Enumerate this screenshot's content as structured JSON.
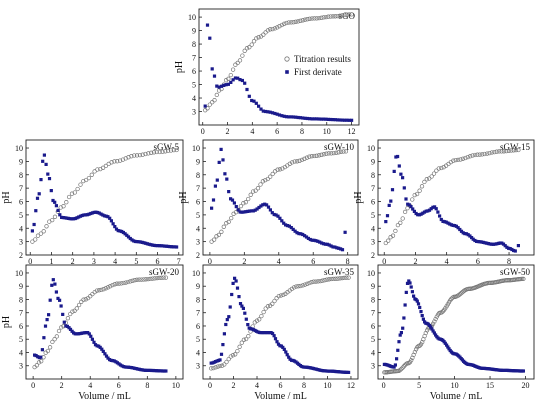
{
  "colors": {
    "derivative": "#1a1a8c",
    "titration": "#777777",
    "axis": "#222222",
    "background": "#ffffff"
  },
  "legend": {
    "titration": "Titration results",
    "derivative": "First derivate"
  },
  "chart_data": [
    {
      "type": "scatter",
      "title": "sGO",
      "xlabel": "",
      "ylabel": "pH",
      "xlim": [
        -0.3,
        12.6
      ],
      "ylim": [
        2,
        10.6
      ],
      "xticks": [
        0,
        2,
        4,
        6,
        8,
        10,
        12
      ],
      "yticks": [
        3,
        4,
        5,
        6,
        7,
        8,
        9,
        10
      ],
      "legend_position": "center-right",
      "grid": false,
      "titration": {
        "x_start": 0.2,
        "x_end": 12.0,
        "points": 64,
        "knots": [
          [
            0.2,
            3.1
          ],
          [
            0.8,
            3.7
          ],
          [
            1.4,
            4.6
          ],
          [
            2.0,
            5.4
          ],
          [
            2.8,
            6.6
          ],
          [
            3.6,
            7.7
          ],
          [
            4.5,
            8.5
          ],
          [
            5.5,
            9.1
          ],
          [
            7.0,
            9.6
          ],
          [
            9.0,
            9.9
          ],
          [
            10.5,
            10.05
          ],
          [
            12.0,
            10.2
          ]
        ]
      },
      "derivative": {
        "x_start": 0.2,
        "x_end": 12.0,
        "points": 64,
        "tail": [],
        "knots": [
          [
            0.2,
            3.4
          ],
          [
            0.35,
            9.5
          ],
          [
            0.55,
            8.5
          ],
          [
            0.8,
            6.0
          ],
          [
            1.2,
            4.8
          ],
          [
            2.0,
            5.0
          ],
          [
            2.7,
            5.5
          ],
          [
            3.2,
            5.3
          ],
          [
            4.0,
            3.8
          ],
          [
            5.0,
            3.0
          ],
          [
            7.0,
            2.6
          ],
          [
            9.0,
            2.45
          ],
          [
            12.0,
            2.35
          ]
        ]
      }
    },
    {
      "type": "scatter",
      "title": "sGW-5",
      "xlabel": "",
      "ylabel": "pH",
      "xlim": [
        -0.2,
        7.2
      ],
      "ylim": [
        2,
        10.6
      ],
      "xticks": [
        0,
        1,
        2,
        3,
        4,
        5,
        6,
        7
      ],
      "yticks": [
        2,
        3,
        4,
        5,
        6,
        7,
        8,
        9,
        10
      ],
      "grid": false,
      "titration": {
        "x_start": 0.1,
        "x_end": 6.9,
        "points": 52,
        "knots": [
          [
            0.1,
            3.0
          ],
          [
            0.5,
            3.6
          ],
          [
            1.0,
            4.6
          ],
          [
            1.5,
            5.6
          ],
          [
            2.0,
            6.6
          ],
          [
            2.6,
            7.6
          ],
          [
            3.2,
            8.4
          ],
          [
            4.0,
            9.0
          ],
          [
            5.0,
            9.45
          ],
          [
            6.0,
            9.7
          ],
          [
            6.9,
            9.85
          ]
        ]
      },
      "derivative": {
        "x_start": 0.1,
        "x_end": 6.9,
        "points": 85,
        "tail": [],
        "knots": [
          [
            0.1,
            3.8
          ],
          [
            0.4,
            6.5
          ],
          [
            0.65,
            9.5
          ],
          [
            0.85,
            8.0
          ],
          [
            1.1,
            6.0
          ],
          [
            1.5,
            4.8
          ],
          [
            2.0,
            4.7
          ],
          [
            2.6,
            5.0
          ],
          [
            3.1,
            5.2
          ],
          [
            3.6,
            4.9
          ],
          [
            4.2,
            3.8
          ],
          [
            5.0,
            3.0
          ],
          [
            6.0,
            2.7
          ],
          [
            6.9,
            2.6
          ]
        ]
      }
    },
    {
      "type": "scatter",
      "title": "sGW-10",
      "xlabel": "",
      "ylabel": "pH",
      "xlim": [
        -0.4,
        8.6
      ],
      "ylim": [
        2,
        10.6
      ],
      "xticks": [
        0,
        2,
        4,
        6,
        8
      ],
      "yticks": [
        2,
        3,
        4,
        5,
        6,
        7,
        8,
        9,
        10
      ],
      "grid": false,
      "titration": {
        "x_start": 0.1,
        "x_end": 7.9,
        "points": 56,
        "knots": [
          [
            0.1,
            3.0
          ],
          [
            0.5,
            3.5
          ],
          [
            1.0,
            4.4
          ],
          [
            1.5,
            5.2
          ],
          [
            2.0,
            5.9
          ],
          [
            2.6,
            6.8
          ],
          [
            3.2,
            7.6
          ],
          [
            4.0,
            8.4
          ],
          [
            5.0,
            9.0
          ],
          [
            6.0,
            9.4
          ],
          [
            7.0,
            9.6
          ],
          [
            7.9,
            9.75
          ]
        ]
      },
      "derivative": {
        "x_start": 0.1,
        "x_end": 7.7,
        "points": 70,
        "tail": [
          [
            7.85,
            3.7
          ]
        ],
        "knots": [
          [
            0.1,
            5.5
          ],
          [
            0.4,
            7.5
          ],
          [
            0.65,
            9.9
          ],
          [
            0.9,
            8.0
          ],
          [
            1.2,
            6.2
          ],
          [
            1.8,
            5.2
          ],
          [
            2.5,
            5.3
          ],
          [
            3.2,
            5.8
          ],
          [
            3.8,
            5.0
          ],
          [
            4.5,
            4.2
          ],
          [
            5.2,
            3.6
          ],
          [
            6.0,
            3.1
          ],
          [
            6.8,
            2.8
          ],
          [
            7.2,
            2.6
          ],
          [
            7.5,
            2.5
          ],
          [
            7.7,
            2.4
          ]
        ]
      }
    },
    {
      "type": "scatter",
      "title": "sGW-15",
      "xlabel": "",
      "ylabel": "pH",
      "xlim": [
        -0.4,
        9.6
      ],
      "ylim": [
        2,
        10.6
      ],
      "xticks": [
        0,
        2,
        4,
        6,
        8
      ],
      "yticks": [
        2,
        3,
        4,
        5,
        6,
        7,
        8,
        9,
        10
      ],
      "grid": false,
      "titration": {
        "x_start": 0.1,
        "x_end": 8.6,
        "points": 56,
        "knots": [
          [
            0.1,
            2.9
          ],
          [
            0.5,
            3.4
          ],
          [
            1.0,
            4.4
          ],
          [
            1.5,
            5.5
          ],
          [
            2.0,
            6.5
          ],
          [
            2.8,
            7.7
          ],
          [
            3.6,
            8.5
          ],
          [
            4.6,
            9.1
          ],
          [
            6.0,
            9.5
          ],
          [
            7.5,
            9.75
          ],
          [
            8.6,
            9.85
          ]
        ]
      },
      "derivative": {
        "x_start": 0.1,
        "x_end": 8.4,
        "points": 78,
        "tail": [
          [
            8.6,
            2.7
          ]
        ],
        "knots": [
          [
            0.1,
            4.5
          ],
          [
            0.4,
            6.0
          ],
          [
            0.8,
            9.5
          ],
          [
            1.1,
            8.0
          ],
          [
            1.5,
            5.8
          ],
          [
            2.2,
            5.0
          ],
          [
            2.8,
            5.3
          ],
          [
            3.2,
            5.6
          ],
          [
            3.8,
            4.5
          ],
          [
            4.5,
            4.2
          ],
          [
            5.2,
            3.6
          ],
          [
            6.0,
            3.0
          ],
          [
            7.0,
            2.8
          ],
          [
            7.5,
            2.9
          ],
          [
            8.0,
            2.5
          ],
          [
            8.4,
            2.3
          ]
        ]
      }
    },
    {
      "type": "scatter",
      "title": "sGW-20",
      "xlabel": "Volume / mL",
      "ylabel": "pH",
      "xlim": [
        -0.5,
        10.5
      ],
      "ylim": [
        2,
        10.6
      ],
      "xticks": [
        0,
        2,
        4,
        6,
        8,
        10
      ],
      "yticks": [
        3,
        4,
        5,
        6,
        7,
        8,
        9,
        10
      ],
      "grid": false,
      "titration": {
        "x_start": 0.1,
        "x_end": 9.3,
        "points": 60,
        "knots": [
          [
            0.1,
            2.9
          ],
          [
            0.5,
            3.3
          ],
          [
            1.0,
            4.1
          ],
          [
            1.5,
            5.0
          ],
          [
            2.0,
            5.9
          ],
          [
            2.8,
            7.1
          ],
          [
            3.6,
            8.0
          ],
          [
            4.6,
            8.7
          ],
          [
            6.0,
            9.2
          ],
          [
            7.5,
            9.5
          ],
          [
            9.3,
            9.65
          ]
        ]
      },
      "derivative": {
        "x_start": 0.1,
        "x_end": 9.3,
        "points": 85,
        "tail": [],
        "knots": [
          [
            0.1,
            3.8
          ],
          [
            0.5,
            3.6
          ],
          [
            1.0,
            6.5
          ],
          [
            1.4,
            9.5
          ],
          [
            1.8,
            8.0
          ],
          [
            2.3,
            6.0
          ],
          [
            3.0,
            5.4
          ],
          [
            3.8,
            5.5
          ],
          [
            4.5,
            4.5
          ],
          [
            5.5,
            3.4
          ],
          [
            6.5,
            2.9
          ],
          [
            8.0,
            2.65
          ],
          [
            9.3,
            2.6
          ]
        ]
      }
    },
    {
      "type": "scatter",
      "title": "sGW-35",
      "xlabel": "Volume / mL",
      "ylabel": "",
      "xlim": [
        -0.6,
        12.6
      ],
      "ylim": [
        2,
        10.6
      ],
      "xticks": [
        0,
        2,
        4,
        6,
        8,
        10,
        12
      ],
      "yticks": [
        3,
        4,
        5,
        6,
        7,
        8,
        9,
        10
      ],
      "grid": false,
      "titration": {
        "x_start": 0.1,
        "x_end": 11.8,
        "points": 64,
        "knots": [
          [
            0.1,
            2.8
          ],
          [
            1.0,
            3.0
          ],
          [
            2.0,
            3.8
          ],
          [
            3.0,
            5.0
          ],
          [
            4.0,
            6.4
          ],
          [
            5.0,
            7.5
          ],
          [
            6.0,
            8.3
          ],
          [
            7.5,
            9.0
          ],
          [
            9.0,
            9.35
          ],
          [
            10.5,
            9.55
          ],
          [
            11.8,
            9.65
          ]
        ]
      },
      "derivative": {
        "x_start": 0.1,
        "x_end": 11.8,
        "points": 95,
        "tail": [],
        "knots": [
          [
            0.1,
            3.2
          ],
          [
            0.8,
            3.4
          ],
          [
            1.5,
            6.5
          ],
          [
            2.1,
            9.6
          ],
          [
            2.7,
            7.5
          ],
          [
            3.4,
            5.8
          ],
          [
            4.3,
            5.5
          ],
          [
            5.2,
            5.5
          ],
          [
            6.0,
            4.5
          ],
          [
            7.0,
            3.4
          ],
          [
            8.0,
            2.9
          ],
          [
            10.0,
            2.6
          ],
          [
            11.8,
            2.5
          ]
        ]
      }
    },
    {
      "type": "scatter",
      "title": "sGW-50",
      "xlabel": "Volume / mL",
      "ylabel": "",
      "xlim": [
        -0.8,
        21.2
      ],
      "ylim": [
        2,
        10.6
      ],
      "xticks": [
        0,
        5,
        10,
        15,
        20
      ],
      "yticks": [
        3,
        4,
        5,
        6,
        7,
        8,
        9,
        10
      ],
      "grid": false,
      "titration": {
        "x_start": 0.1,
        "x_end": 19.7,
        "points": 115,
        "knots": [
          [
            0.1,
            2.5
          ],
          [
            2.0,
            2.6
          ],
          [
            3.5,
            3.2
          ],
          [
            5.0,
            4.5
          ],
          [
            6.5,
            5.9
          ],
          [
            8.0,
            7.0
          ],
          [
            10.0,
            8.2
          ],
          [
            12.0,
            8.8
          ],
          [
            15.0,
            9.25
          ],
          [
            17.5,
            9.45
          ],
          [
            19.7,
            9.55
          ]
        ]
      },
      "derivative": {
        "x_start": 0.1,
        "x_end": 19.7,
        "points": 115,
        "tail": [],
        "knots": [
          [
            0.1,
            3.1
          ],
          [
            1.5,
            2.9
          ],
          [
            2.5,
            5.5
          ],
          [
            3.5,
            9.4
          ],
          [
            4.5,
            8.0
          ],
          [
            6.0,
            6.2
          ],
          [
            8.0,
            5.0
          ],
          [
            10.0,
            3.9
          ],
          [
            12.0,
            3.1
          ],
          [
            14.0,
            2.8
          ],
          [
            17.0,
            2.65
          ],
          [
            19.7,
            2.6
          ]
        ]
      }
    }
  ]
}
